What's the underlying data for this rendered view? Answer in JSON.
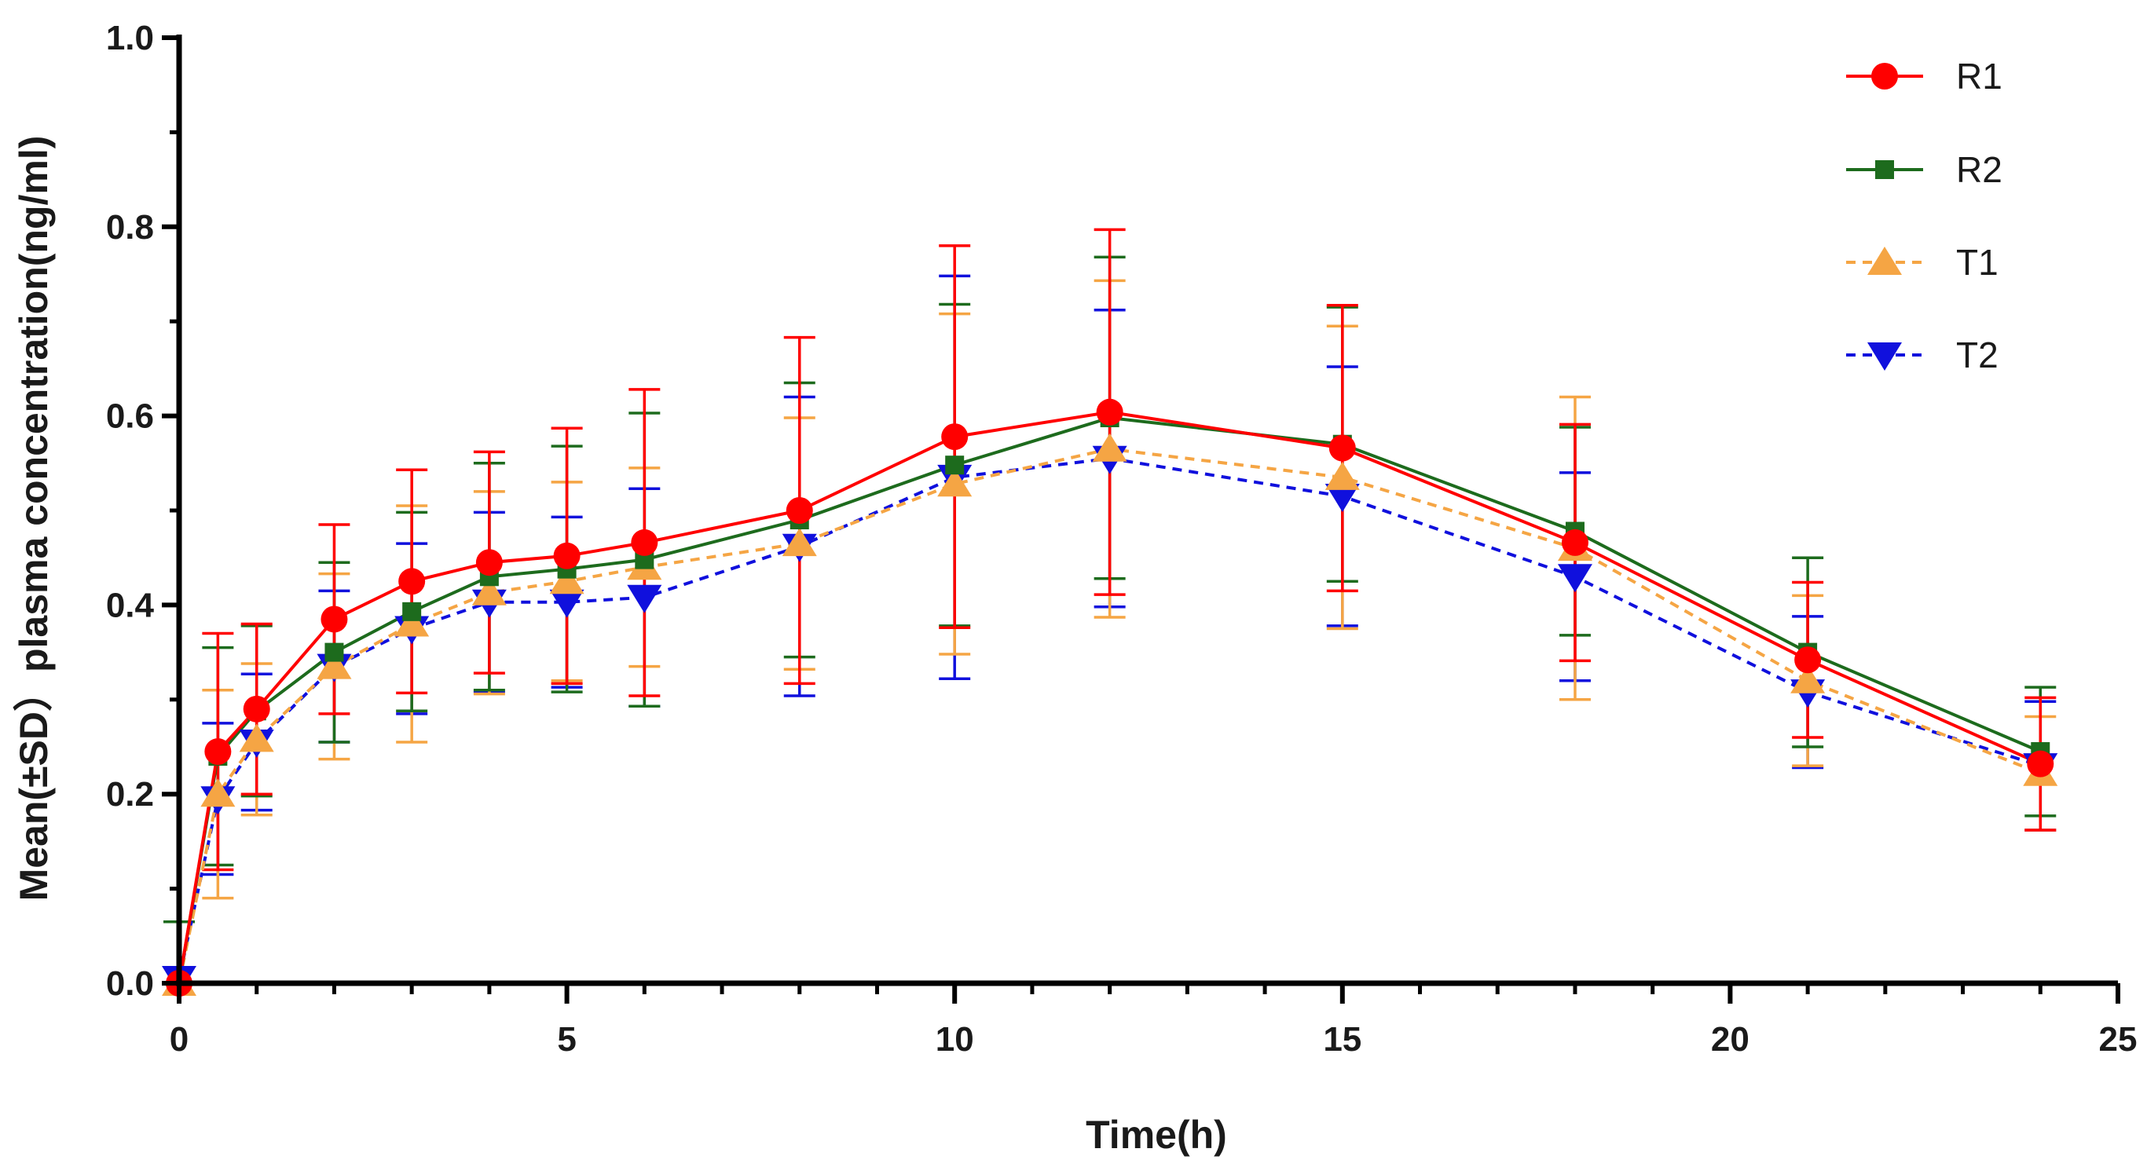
{
  "chart_data": {
    "type": "line",
    "title": "",
    "xlabel": "Time(h)",
    "ylabel": "Mean(±SD）plasma concentration(ng/ml)",
    "xlim": [
      0,
      25
    ],
    "ylim": [
      0,
      1.0
    ],
    "x_ticks": [
      "0",
      "5",
      "10",
      "15",
      "20",
      "25"
    ],
    "y_ticks": [
      "0.0",
      "0.2",
      "0.4",
      "0.6",
      "0.8",
      "1.0"
    ],
    "grid": false,
    "legend_position": "top-right",
    "x": [
      0,
      0.5,
      1,
      2,
      3,
      4,
      5,
      6,
      8,
      10,
      12,
      15,
      18,
      21,
      24
    ],
    "series": [
      {
        "name": "R1",
        "color": "#ff0000",
        "marker": "circle",
        "dash": "solid",
        "values": [
          0.0,
          0.245,
          0.29,
          0.385,
          0.425,
          0.445,
          0.452,
          0.466,
          0.5,
          0.578,
          0.604,
          0.566,
          0.466,
          0.342,
          0.232
        ],
        "sd": [
          0.0,
          0.125,
          0.09,
          0.1,
          0.118,
          0.117,
          0.135,
          0.162,
          0.183,
          0.202,
          0.193,
          0.151,
          0.125,
          0.082,
          0.07
        ]
      },
      {
        "name": "R2",
        "color": "#1d6b1d",
        "marker": "square",
        "dash": "solid",
        "values": [
          0.0,
          0.24,
          0.288,
          0.35,
          0.393,
          0.43,
          0.438,
          0.448,
          0.49,
          0.548,
          0.598,
          0.57,
          0.478,
          0.35,
          0.245
        ],
        "sd": [
          0.065,
          0.115,
          0.09,
          0.095,
          0.105,
          0.12,
          0.13,
          0.155,
          0.145,
          0.17,
          0.17,
          0.145,
          0.11,
          0.1,
          0.068
        ]
      },
      {
        "name": "T1",
        "color": "#f5a544",
        "marker": "triangle-up",
        "dash": "dashed",
        "values": [
          0.0,
          0.2,
          0.258,
          0.335,
          0.38,
          0.413,
          0.425,
          0.44,
          0.465,
          0.528,
          0.565,
          0.535,
          0.46,
          0.32,
          0.222
        ],
        "sd": [
          0.0,
          0.11,
          0.08,
          0.098,
          0.125,
          0.107,
          0.105,
          0.105,
          0.133,
          0.18,
          0.178,
          0.16,
          0.16,
          0.09,
          0.06
        ]
      },
      {
        "name": "T2",
        "color": "#1010dd",
        "marker": "triangle-down",
        "dash": "dashed",
        "values": [
          0.005,
          0.195,
          0.255,
          0.335,
          0.375,
          0.403,
          0.403,
          0.408,
          0.462,
          0.535,
          0.555,
          0.515,
          0.43,
          0.308,
          0.23
        ],
        "sd": [
          0.0,
          0.08,
          0.072,
          0.08,
          0.09,
          0.095,
          0.09,
          0.115,
          0.158,
          0.213,
          0.157,
          0.137,
          0.11,
          0.08,
          0.068
        ]
      }
    ]
  }
}
